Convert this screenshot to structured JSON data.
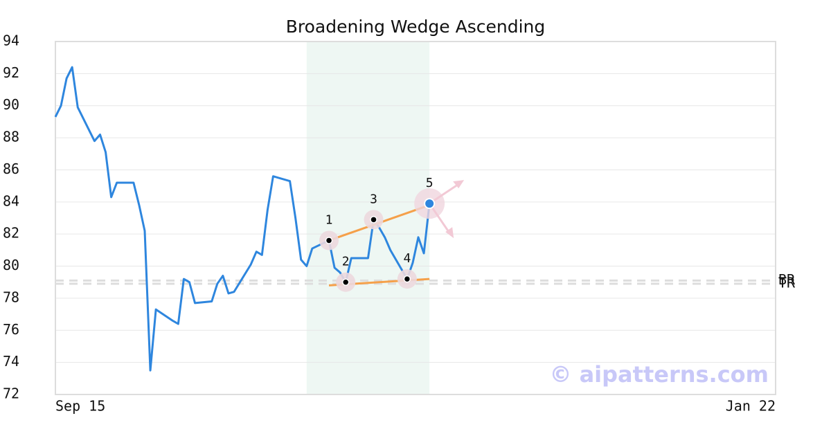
{
  "chart_data": {
    "type": "line",
    "title": "Broadening Wedge Ascending",
    "watermark": "© aipatterns.com",
    "x": [
      "Sep 15",
      "Sep 16",
      "Sep 17",
      "Sep 18",
      "Sep 19",
      "Sep 22",
      "Sep 23",
      "Sep 24",
      "Sep 25",
      "Sep 26",
      "Sep 29",
      "Sep 30",
      "Oct 1",
      "Oct 2",
      "Oct 3",
      "Oct 6",
      "Oct 7",
      "Oct 8",
      "Oct 9",
      "Oct 10",
      "Oct 13",
      "Oct 14",
      "Oct 15",
      "Oct 16",
      "Oct 17",
      "Oct 20",
      "Oct 21",
      "Oct 22",
      "Oct 23",
      "Oct 24",
      "Oct 27",
      "Oct 28",
      "Oct 29",
      "Oct 30",
      "Oct 31",
      "Nov 3",
      "Nov 4",
      "Nov 5",
      "Nov 6",
      "Nov 7",
      "Nov 10",
      "Nov 11",
      "Nov 12",
      "Nov 13",
      "Nov 14",
      "Nov 17",
      "Nov 18",
      "Nov 19",
      "Nov 20",
      "Nov 21"
    ],
    "values": [
      89.3,
      90.0,
      91.7,
      92.4,
      89.9,
      87.8,
      88.2,
      87.1,
      84.3,
      85.2,
      85.2,
      83.8,
      82.2,
      73.5,
      77.3,
      76.6,
      76.4,
      79.2,
      79.0,
      77.7,
      77.8,
      78.9,
      79.4,
      78.3,
      78.4,
      80.1,
      80.9,
      80.7,
      83.5,
      85.6,
      85.3,
      83.0,
      80.4,
      80.0,
      81.1,
      81.6,
      79.9,
      79.6,
      79.0,
      80.5,
      80.5,
      82.9,
      82.4,
      81.8,
      81.0,
      79.2,
      80.2,
      81.8,
      80.8,
      83.9
    ],
    "color": "#2e86de",
    "xlim": [
      "Sep 15",
      "Jan 22"
    ],
    "xticks": [
      "Sep 15",
      "Jan 22"
    ],
    "ylim": [
      72,
      94
    ],
    "yticks": [
      72,
      74,
      76,
      78,
      80,
      82,
      84,
      86,
      88,
      90,
      92,
      94
    ],
    "grid": true,
    "highlight": [
      "Oct 30",
      "Nov 21"
    ],
    "pattern_points": [
      {
        "label": "1",
        "x": "Nov 3",
        "value": 81.6
      },
      {
        "label": "2",
        "x": "Nov 6",
        "value": 79.0
      },
      {
        "label": "3",
        "x": "Nov 11",
        "value": 82.9
      },
      {
        "label": "4",
        "x": "Nov 17",
        "value": 79.2
      },
      {
        "label": "5",
        "x": "Nov 21",
        "value": 83.9
      }
    ],
    "trendlines": [
      {
        "x": [
          "Nov 3",
          "Nov 21"
        ],
        "values": [
          81.6,
          83.8
        ]
      },
      {
        "x": [
          "Nov 3",
          "Nov 21"
        ],
        "values": [
          78.8,
          79.2
        ]
      }
    ],
    "levels": [
      {
        "label": "BR",
        "value": 79.1
      },
      {
        "label": "TR",
        "value": 78.9
      }
    ]
  }
}
